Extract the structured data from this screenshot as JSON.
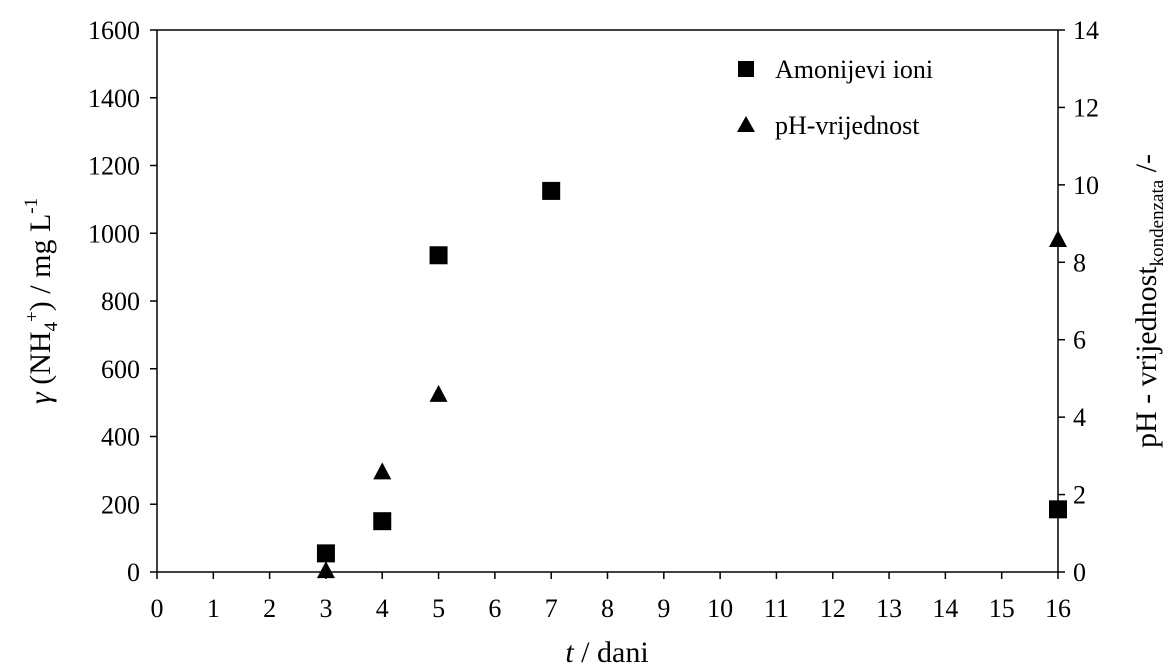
{
  "chart_data": {
    "type": "scatter",
    "x_ticks": [
      "0",
      "1",
      "2",
      "3",
      "4",
      "5",
      "6",
      "7",
      "8",
      "9",
      "10",
      "11",
      "12",
      "13",
      "14",
      "15",
      "16"
    ],
    "x_tick_values": [
      0,
      1,
      2,
      3,
      4,
      5,
      6,
      7,
      8,
      9,
      10,
      11,
      12,
      13,
      14,
      15,
      16
    ],
    "x_category_positions": [
      0,
      1,
      2,
      3,
      4,
      5,
      6,
      7,
      8,
      9,
      10,
      11,
      12,
      13,
      14,
      15,
      16
    ],
    "xlabel": {
      "italic": "t",
      "rest": " / dani"
    },
    "xlim": [
      0,
      16
    ],
    "y_left": {
      "ticks": [
        "0",
        "200",
        "400",
        "600",
        "800",
        "1000",
        "1200",
        "1400",
        "1600"
      ],
      "tick_values": [
        0,
        200,
        400,
        600,
        800,
        1000,
        1200,
        1400,
        1600
      ],
      "ylim": [
        0,
        1600
      ],
      "label": {
        "gamma": "γ",
        "pre": " (NH",
        "sub": "4",
        "sup_plus": "+",
        "mid": ") / mg L",
        "sup": "-1"
      }
    },
    "y_right": {
      "ticks": [
        "0",
        "2",
        "4",
        "6",
        "8",
        "10",
        "12",
        "14"
      ],
      "tick_values": [
        0,
        2,
        4,
        6,
        8,
        10,
        12,
        14
      ],
      "ylim": [
        0,
        14
      ],
      "label": {
        "pre": "pH - vrijednost",
        "sub": "kondenzata",
        "post": " /-"
      }
    },
    "series": [
      {
        "name": "Amonijevi ioni",
        "marker": "square",
        "axis": "left",
        "color": "#000000",
        "x_labels": [
          "3",
          "4",
          "5",
          "7",
          "16"
        ],
        "y": [
          55,
          150,
          935,
          1125,
          185
        ]
      },
      {
        "name": "pH-vrijednost",
        "marker": "triangle",
        "axis": "right",
        "color": "#000000",
        "x_labels": [
          "3",
          "4",
          "5",
          "16"
        ],
        "y": [
          0.05,
          2.6,
          4.6,
          8.6
        ]
      }
    ],
    "legend_position": "top-right",
    "grid": false
  }
}
